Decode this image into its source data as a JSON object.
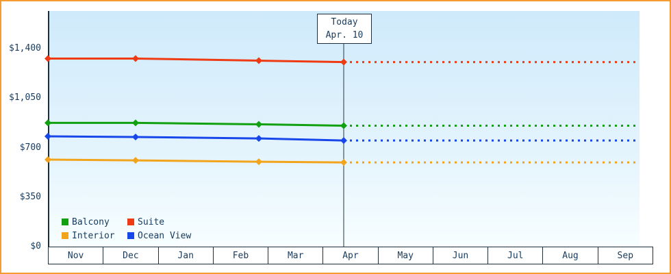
{
  "colors": {
    "frame_border": "#f59b31",
    "plot_top": "#cfeafb",
    "plot_bottom": "#f8feff",
    "axis": "#1c2e3e",
    "text": "#173a5c",
    "today_line": "#44565f"
  },
  "chart_data": {
    "type": "line",
    "title": "",
    "x_categories": [
      "Nov",
      "Dec",
      "Jan",
      "Feb",
      "Mar",
      "Apr",
      "May",
      "Jun",
      "Jul",
      "Aug",
      "Sep"
    ],
    "y_ticks": [
      {
        "label": "$0",
        "value": 0
      },
      {
        "label": "$350",
        "value": 350
      },
      {
        "label": "$700",
        "value": 700
      },
      {
        "label": "$1,050",
        "value": 1050
      },
      {
        "label": "$1,400",
        "value": 1400
      }
    ],
    "ylim": [
      0,
      1450
    ],
    "grid": false,
    "legend_position": "bottom-left",
    "today": {
      "line1": "Today",
      "line2": "Apr. 10",
      "x": 5.4
    },
    "series": [
      {
        "name": "Suite",
        "color": "#ee3b14",
        "x": [
          0,
          1.6,
          3.85,
          5.4
        ],
        "values": [
          1330,
          1330,
          1315,
          1305
        ],
        "forecast_value": 1305
      },
      {
        "name": "Balcony",
        "color": "#10a010",
        "x": [
          0,
          1.6,
          3.85,
          5.4
        ],
        "values": [
          875,
          875,
          865,
          855
        ],
        "forecast_value": 855
      },
      {
        "name": "Ocean View",
        "color": "#1747ea",
        "x": [
          0,
          1.6,
          3.85,
          5.4
        ],
        "values": [
          780,
          775,
          765,
          750
        ],
        "forecast_value": 750
      },
      {
        "name": "Interior",
        "color": "#f2a41c",
        "x": [
          0,
          1.6,
          3.85,
          5.4
        ],
        "values": [
          615,
          610,
          600,
          595
        ],
        "forecast_value": 595
      }
    ],
    "legend": [
      [
        "Balcony",
        "Suite"
      ],
      [
        "Interior",
        "Ocean View"
      ]
    ]
  }
}
